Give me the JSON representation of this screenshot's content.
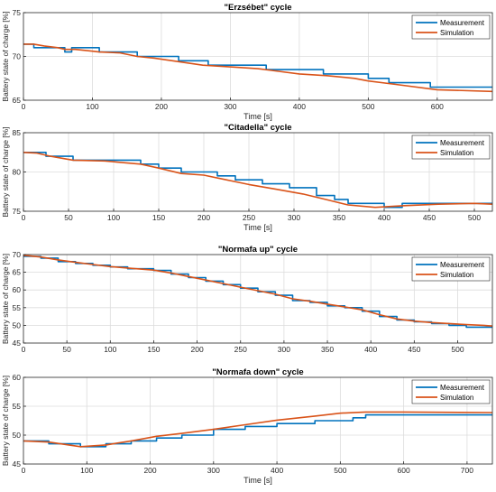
{
  "chart_data": [
    {
      "type": "line",
      "title": "\"Erzsébet\" cycle",
      "xlabel": "Time [s]",
      "ylabel": "Battery state of charge [%]",
      "xlim": [
        0,
        680
      ],
      "ylim": [
        65,
        75
      ],
      "xticks": [
        0,
        100,
        200,
        300,
        400,
        500,
        600
      ],
      "yticks": [
        65,
        70,
        75
      ],
      "grid": true,
      "legend_position": "top-right",
      "series": [
        {
          "name": "Measurement",
          "color": "#0072BD",
          "step": true,
          "x": [
            0,
            15,
            60,
            70,
            110,
            120,
            165,
            180,
            225,
            268,
            340,
            352,
            435,
            480,
            500,
            530,
            590,
            680
          ],
          "y": [
            71.4,
            71.0,
            70.5,
            71.0,
            70.5,
            70.5,
            70.0,
            70.0,
            69.5,
            69.0,
            69.0,
            68.5,
            68.0,
            68.0,
            67.5,
            67.0,
            66.5,
            66.5
          ]
        },
        {
          "name": "Simulation",
          "color": "#D95319",
          "step": false,
          "x": [
            0,
            15,
            30,
            50,
            60,
            75,
            100,
            110,
            140,
            165,
            190,
            225,
            260,
            300,
            340,
            360,
            400,
            440,
            480,
            500,
            540,
            600,
            680
          ],
          "y": [
            71.4,
            71.4,
            71.2,
            71.0,
            70.8,
            70.8,
            70.6,
            70.5,
            70.4,
            70.0,
            69.8,
            69.4,
            69.0,
            68.8,
            68.6,
            68.4,
            68.0,
            67.8,
            67.5,
            67.2,
            66.8,
            66.2,
            66.0
          ]
        }
      ]
    },
    {
      "type": "line",
      "title": "\"Citadella\" cycle",
      "xlabel": "Time [s]",
      "ylabel": "Battery state of charge [%]",
      "xlim": [
        0,
        520
      ],
      "ylim": [
        75,
        85
      ],
      "xticks": [
        0,
        50,
        100,
        150,
        200,
        250,
        300,
        350,
        400,
        450,
        500
      ],
      "yticks": [
        75,
        80,
        85
      ],
      "grid": true,
      "legend_position": "top-right",
      "series": [
        {
          "name": "Measurement",
          "color": "#0072BD",
          "step": true,
          "x": [
            0,
            25,
            55,
            90,
            130,
            150,
            175,
            215,
            235,
            265,
            295,
            325,
            345,
            360,
            400,
            420,
            460,
            520
          ],
          "y": [
            82.5,
            82.0,
            81.5,
            81.5,
            81.0,
            80.5,
            80.0,
            79.5,
            79.0,
            78.5,
            78.0,
            77.0,
            76.5,
            76.0,
            75.5,
            76.0,
            76.0,
            76.0
          ]
        },
        {
          "name": "Simulation",
          "color": "#D95319",
          "step": false,
          "x": [
            0,
            15,
            30,
            55,
            90,
            130,
            150,
            175,
            200,
            225,
            250,
            280,
            310,
            335,
            360,
            390,
            420,
            460,
            500,
            520
          ],
          "y": [
            82.5,
            82.4,
            82.0,
            81.5,
            81.4,
            81.0,
            80.5,
            79.8,
            79.6,
            79.0,
            78.4,
            77.8,
            77.2,
            76.5,
            75.8,
            75.5,
            75.7,
            75.9,
            76.0,
            75.9
          ]
        }
      ]
    },
    {
      "type": "line",
      "title": "\"Normafa up\" cycle",
      "xlabel": "",
      "ylabel": "Battery state of charge [%]",
      "xlim": [
        0,
        540
      ],
      "ylim": [
        45,
        70
      ],
      "xticks": [
        0,
        50,
        100,
        150,
        200,
        250,
        300,
        350,
        400,
        450,
        500
      ],
      "yticks": [
        45,
        50,
        55,
        60,
        65,
        70
      ],
      "grid": true,
      "legend_position": "top-right",
      "series": [
        {
          "name": "Measurement",
          "color": "#0072BD",
          "step": true,
          "x": [
            0,
            20,
            40,
            60,
            80,
            100,
            120,
            150,
            170,
            190,
            210,
            230,
            250,
            270,
            290,
            310,
            330,
            350,
            370,
            390,
            410,
            430,
            450,
            470,
            490,
            510,
            530,
            540
          ],
          "y": [
            69.5,
            69.0,
            68.0,
            67.5,
            67.0,
            66.5,
            66.0,
            65.5,
            64.5,
            63.5,
            62.5,
            61.5,
            60.5,
            59.5,
            58.5,
            57.0,
            56.5,
            55.5,
            55.0,
            54.0,
            52.5,
            51.5,
            51.0,
            50.5,
            50.0,
            49.5,
            49.5,
            49.5
          ]
        },
        {
          "name": "Simulation",
          "color": "#D95319",
          "step": false,
          "x": [
            0,
            20,
            40,
            60,
            80,
            100,
            120,
            150,
            170,
            190,
            210,
            230,
            250,
            270,
            290,
            310,
            330,
            350,
            370,
            390,
            410,
            430,
            450,
            470,
            490,
            510,
            530,
            540
          ],
          "y": [
            69.8,
            69.3,
            68.5,
            67.8,
            67.2,
            66.6,
            66.2,
            65.6,
            64.8,
            63.8,
            62.8,
            61.8,
            60.8,
            59.8,
            58.8,
            57.5,
            56.8,
            56.0,
            55.2,
            54.4,
            53.0,
            51.8,
            51.2,
            50.8,
            50.5,
            50.2,
            50.0,
            49.8
          ]
        }
      ]
    },
    {
      "type": "line",
      "title": "\"Normafa down\" cycle",
      "xlabel": "Time [s]",
      "ylabel": "Battery state of charge [%]",
      "xlim": [
        0,
        740
      ],
      "ylim": [
        45,
        60
      ],
      "xticks": [
        0,
        100,
        200,
        300,
        400,
        500,
        600,
        700
      ],
      "yticks": [
        45,
        50,
        55,
        60
      ],
      "grid": true,
      "legend_position": "top-right",
      "series": [
        {
          "name": "Measurement",
          "color": "#0072BD",
          "step": true,
          "x": [
            0,
            40,
            90,
            130,
            170,
            210,
            250,
            300,
            350,
            400,
            460,
            520,
            540,
            600,
            740
          ],
          "y": [
            49.0,
            48.5,
            48.0,
            48.5,
            49.0,
            49.5,
            50.0,
            51.0,
            51.5,
            52.0,
            52.5,
            53.0,
            53.5,
            53.5,
            53.5
          ]
        },
        {
          "name": "Simulation",
          "color": "#D95319",
          "step": false,
          "x": [
            0,
            40,
            90,
            130,
            170,
            210,
            250,
            300,
            350,
            400,
            460,
            500,
            540,
            600,
            740
          ],
          "y": [
            49.0,
            48.8,
            48.0,
            48.3,
            49.0,
            49.8,
            50.3,
            51.0,
            51.8,
            52.6,
            53.3,
            53.8,
            54.0,
            54.0,
            53.9
          ]
        }
      ]
    }
  ]
}
